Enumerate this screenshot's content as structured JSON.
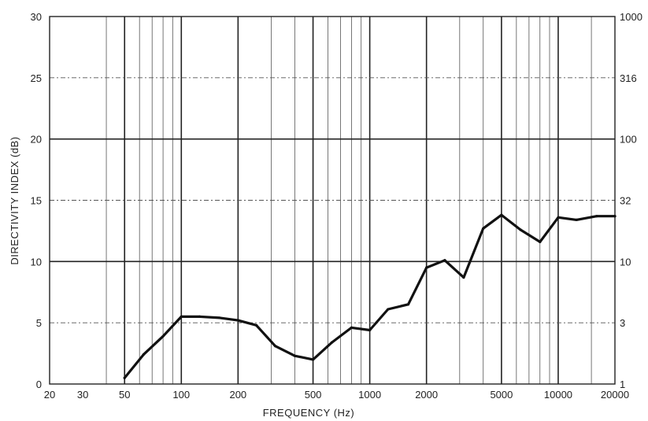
{
  "chart_data": {
    "type": "line",
    "title": "",
    "xlabel": "FREQUENCY (Hz)",
    "ylabel": "DIRECTIVITY INDEX (dB)",
    "x_scale": "log",
    "xlim": [
      20,
      20000
    ],
    "ylim": [
      0,
      30
    ],
    "grid": true,
    "x_ticks": [
      20,
      30,
      50,
      100,
      200,
      500,
      1000,
      2000,
      5000,
      10000,
      20000
    ],
    "x_tick_labels": [
      "20",
      "30",
      "50",
      "100",
      "200",
      "500",
      "1000",
      "2000",
      "5000",
      "10000",
      "20000"
    ],
    "x_minor_gridlines": [
      40,
      60,
      70,
      80,
      90,
      300,
      400,
      600,
      700,
      800,
      900,
      3000,
      4000,
      6000,
      7000,
      8000,
      9000,
      15000
    ],
    "x_major_gridlines": [
      50,
      100,
      200,
      500,
      1000,
      2000,
      5000,
      10000
    ],
    "y_ticks": [
      0,
      5,
      10,
      15,
      20,
      25,
      30
    ],
    "y_tick_labels": [
      "0",
      "5",
      "10",
      "15",
      "20",
      "25",
      "30"
    ],
    "y_major_gridlines": [
      10,
      20
    ],
    "y_dashed_gridlines": [
      5,
      15,
      25
    ],
    "y2_tick_labels": [
      "1",
      "3",
      "10",
      "32",
      "100",
      "316",
      "1000"
    ],
    "line_color": "#111111",
    "grid_color": "#555555",
    "series": [
      {
        "x": [
          50,
          63,
          80,
          100,
          125,
          160,
          200,
          250,
          315,
          400,
          500,
          630,
          800,
          1000,
          1250,
          1600,
          2000,
          2500,
          3150,
          4000,
          5000,
          6300,
          8000,
          10000,
          12500,
          16000,
          20000
        ],
        "values": [
          0.5,
          2.4,
          3.9,
          5.5,
          5.5,
          5.4,
          5.2,
          4.8,
          3.1,
          2.3,
          2.0,
          3.4,
          4.6,
          4.4,
          6.1,
          6.5,
          9.5,
          10.1,
          8.7,
          12.7,
          13.8,
          12.6,
          11.6,
          13.6,
          13.4,
          13.7,
          13.7
        ]
      }
    ]
  }
}
